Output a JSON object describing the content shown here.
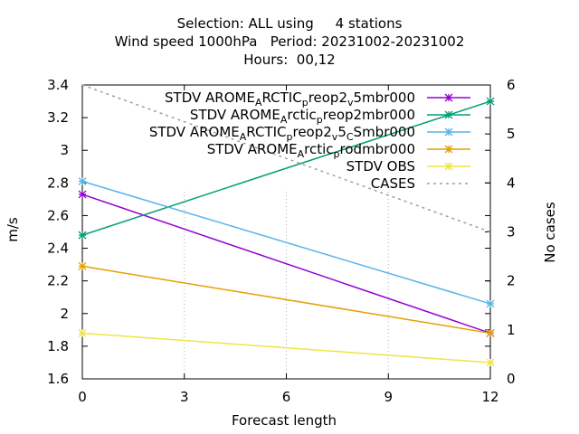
{
  "title_lines": [
    "Selection: ALL using     4 stations",
    "Wind speed 1000hPa   Period: 20231002-20231002",
    "Hours:  00,12"
  ],
  "chart_data": {
    "type": "line",
    "title": "Selection: ALL using     4 stations / Wind speed 1000hPa   Period: 20231002-20231002 / Hours:  00,12",
    "xlabel": "Forecast length",
    "ylabel": "m/s",
    "y2label": "No cases",
    "xlim": [
      0,
      12
    ],
    "ylim": [
      1.6,
      3.4
    ],
    "y2lim": [
      0,
      6
    ],
    "x_ticks": [
      0,
      3,
      6,
      9,
      12
    ],
    "y_ticks": [
      1.6,
      1.8,
      2.0,
      2.2,
      2.4,
      2.6,
      2.8,
      3.0,
      3.2,
      3.4
    ],
    "y_tick_labels": [
      "1.6",
      "1.8",
      "2",
      "2.2",
      "2.4",
      "2.6",
      "2.8",
      "3",
      "3.2",
      "3.4"
    ],
    "y2_ticks": [
      0,
      1,
      2,
      3,
      4,
      5,
      6
    ],
    "grid": "partial dotted",
    "legend_position": "top-right",
    "series": [
      {
        "name": "STDV AROME_ARCTIC_preop2_v5mbr000",
        "legend": [
          [
            "STDV AROME",
            ""
          ],
          [
            "A",
            "sub"
          ],
          [
            "RCTIC",
            ""
          ],
          [
            "p",
            "sub"
          ],
          [
            "reop2",
            ""
          ],
          [
            "v",
            "sub"
          ],
          [
            "5mbr000",
            ""
          ]
        ],
        "color": "#9400d3",
        "axis": "y",
        "marker": "x",
        "x": [
          0,
          12
        ],
        "values": [
          2.73,
          1.88
        ]
      },
      {
        "name": "STDV AROME_Arctic_preop2mbr000",
        "legend": [
          [
            "STDV AROME",
            ""
          ],
          [
            "A",
            "sub"
          ],
          [
            "rctic",
            ""
          ],
          [
            "p",
            "sub"
          ],
          [
            "reop2mbr000",
            ""
          ]
        ],
        "color": "#009e73",
        "axis": "y",
        "marker": "x",
        "x": [
          0,
          12
        ],
        "values": [
          2.48,
          3.3
        ]
      },
      {
        "name": "STDV AROME_ARCTIC_preop2_v5_Smbr000",
        "legend": [
          [
            "STDV AROME",
            ""
          ],
          [
            "A",
            "sub"
          ],
          [
            "RCTIC",
            ""
          ],
          [
            "p",
            "sub"
          ],
          [
            "reop2",
            ""
          ],
          [
            "v",
            "sub"
          ],
          [
            "5",
            ""
          ],
          [
            "C",
            "sub"
          ],
          [
            "Smbr000",
            ""
          ]
        ],
        "color": "#56b4e9",
        "axis": "y",
        "marker": "x",
        "x": [
          0,
          12
        ],
        "values": [
          2.81,
          2.06
        ]
      },
      {
        "name": "STDV AROME_Arctic_prodmbr000",
        "legend": [
          [
            "STDV AROME",
            ""
          ],
          [
            "A",
            "sub"
          ],
          [
            "rctic",
            ""
          ],
          [
            "p",
            "sub"
          ],
          [
            "rodmbr000",
            ""
          ]
        ],
        "color": "#e69f00",
        "axis": "y",
        "marker": "x",
        "x": [
          0,
          12
        ],
        "values": [
          2.29,
          1.88
        ]
      },
      {
        "name": "STDV OBS",
        "legend": [
          [
            "STDV OBS",
            ""
          ]
        ],
        "color": "#f0e442",
        "axis": "y",
        "marker": "x",
        "x": [
          0,
          12
        ],
        "values": [
          1.88,
          1.7
        ]
      },
      {
        "name": "CASES",
        "legend": [
          [
            "CASES",
            ""
          ]
        ],
        "color": "#a0a0a0",
        "axis": "y2",
        "marker": "none",
        "dashed": true,
        "x": [
          0,
          12
        ],
        "values": [
          6,
          3
        ]
      }
    ]
  }
}
